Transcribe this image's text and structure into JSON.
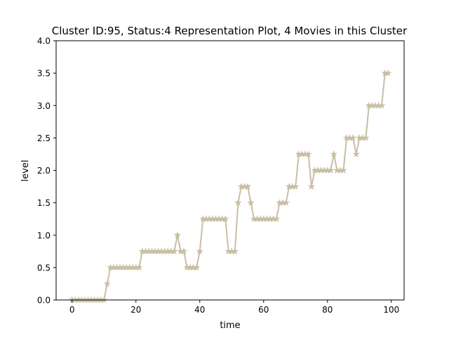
{
  "chart_data": {
    "type": "line",
    "title": "Cluster ID:95, Status:4 Representation Plot, 4 Movies in this Cluster",
    "xlabel": "time",
    "ylabel": "level",
    "xlim": [
      -5,
      104
    ],
    "ylim": [
      0,
      4
    ],
    "xticks": [
      0,
      20,
      40,
      60,
      80,
      100
    ],
    "xtick_labels": [
      "0",
      "20",
      "40",
      "60",
      "80",
      "100"
    ],
    "yticks": [
      0,
      0.5,
      1,
      1.5,
      2,
      2.5,
      3,
      3.5,
      4
    ],
    "ytick_labels": [
      "0.0",
      "0.5",
      "1.0",
      "1.5",
      "2.0",
      "2.5",
      "3.0",
      "3.5",
      "4.0"
    ],
    "grid": false,
    "marker": "star",
    "series": [
      {
        "color": "#c8bfa4",
        "x": [
          0,
          1,
          2,
          3,
          4,
          5,
          6,
          7,
          8,
          9,
          10,
          11,
          12,
          13,
          14,
          15,
          16,
          17,
          18,
          19,
          20,
          21,
          22,
          23,
          24,
          25,
          26,
          27,
          28,
          29,
          30,
          31,
          32,
          33,
          34,
          35,
          36,
          37,
          38,
          39,
          40,
          41,
          42,
          43,
          44,
          45,
          46,
          47,
          48,
          49,
          50,
          51,
          52,
          53,
          54,
          55,
          56,
          57,
          58,
          59,
          60,
          61,
          62,
          63,
          64,
          65,
          66,
          67,
          68,
          69,
          70,
          71,
          72,
          73,
          74,
          75,
          76,
          77,
          78,
          79,
          80,
          81,
          82,
          83,
          84,
          85,
          86,
          87,
          88,
          89,
          90,
          91,
          92,
          93,
          94,
          95,
          96,
          97,
          98,
          99
        ],
        "y": [
          0,
          0,
          0,
          0,
          0,
          0,
          0,
          0,
          0,
          0,
          0,
          0.25,
          0.5,
          0.5,
          0.5,
          0.5,
          0.5,
          0.5,
          0.5,
          0.5,
          0.5,
          0.5,
          0.75,
          0.75,
          0.75,
          0.75,
          0.75,
          0.75,
          0.75,
          0.75,
          0.75,
          0.75,
          0.75,
          1.0,
          0.75,
          0.75,
          0.5,
          0.5,
          0.5,
          0.5,
          0.75,
          1.25,
          1.25,
          1.25,
          1.25,
          1.25,
          1.25,
          1.25,
          1.25,
          0.75,
          0.75,
          0.75,
          1.5,
          1.75,
          1.75,
          1.75,
          1.5,
          1.25,
          1.25,
          1.25,
          1.25,
          1.25,
          1.25,
          1.25,
          1.25,
          1.5,
          1.5,
          1.5,
          1.75,
          1.75,
          1.75,
          2.25,
          2.25,
          2.25,
          2.25,
          1.75,
          2.0,
          2.0,
          2.0,
          2.0,
          2.0,
          2.0,
          2.25,
          2.0,
          2.0,
          2.0,
          2.5,
          2.5,
          2.5,
          2.25,
          2.5,
          2.5,
          2.5,
          3.0,
          3.0,
          3.0,
          3.0,
          3.0,
          3.5,
          3.5
        ]
      }
    ]
  }
}
